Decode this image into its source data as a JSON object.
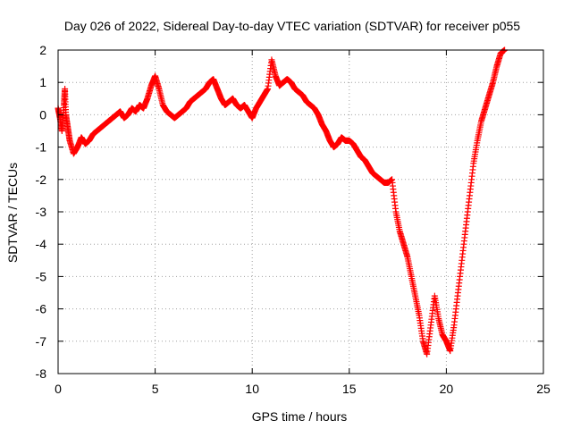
{
  "chart_data": {
    "type": "scatter",
    "title": "Day 026 of 2022, Sidereal Day-to-day VTEC variation (SDTVAR) for receiver p055",
    "xlabel": "GPS time / hours",
    "ylabel": "SDTVAR / TECUs",
    "xlim": [
      0,
      25
    ],
    "ylim": [
      -8,
      2
    ],
    "x_ticks": [
      0,
      5,
      10,
      15,
      20,
      25
    ],
    "y_ticks": [
      -8,
      -7,
      -6,
      -5,
      -4,
      -3,
      -2,
      -1,
      0,
      1,
      2
    ],
    "grid": true,
    "marker": "+",
    "series": [
      {
        "name": "SDTVAR",
        "color": "#ff0000",
        "x": [
          0.0,
          0.1,
          0.2,
          0.3,
          0.35,
          0.4,
          0.5,
          0.6,
          0.8,
          1.0,
          1.2,
          1.4,
          1.6,
          1.8,
          2.0,
          2.2,
          2.4,
          2.6,
          2.8,
          3.0,
          3.2,
          3.4,
          3.6,
          3.8,
          4.0,
          4.2,
          4.4,
          4.6,
          4.8,
          5.0,
          5.2,
          5.4,
          5.6,
          5.8,
          6.0,
          6.2,
          6.4,
          6.6,
          6.8,
          7.0,
          7.2,
          7.4,
          7.6,
          7.8,
          8.0,
          8.2,
          8.4,
          8.6,
          8.8,
          9.0,
          9.2,
          9.4,
          9.6,
          9.8,
          10.0,
          10.2,
          10.4,
          10.6,
          10.8,
          11.0,
          11.2,
          11.4,
          11.6,
          11.8,
          12.0,
          12.2,
          12.4,
          12.6,
          12.8,
          13.0,
          13.2,
          13.4,
          13.6,
          13.8,
          14.0,
          14.2,
          14.4,
          14.6,
          14.8,
          15.0,
          15.2,
          15.4,
          15.6,
          15.8,
          16.0,
          16.2,
          16.4,
          16.6,
          16.8,
          17.0,
          17.2,
          17.4,
          17.6,
          17.8,
          18.0,
          18.2,
          18.4,
          18.6,
          18.8,
          19.0,
          19.2,
          19.4,
          19.6,
          19.8,
          20.0,
          20.2,
          20.4,
          20.6,
          20.8,
          21.0,
          21.2,
          21.4,
          21.6,
          21.8,
          22.0,
          22.2,
          22.4,
          22.6,
          22.8,
          23.0
        ],
        "y": [
          0.2,
          -0.1,
          -0.5,
          0.3,
          0.8,
          0.0,
          -0.4,
          -0.8,
          -1.2,
          -1.0,
          -0.7,
          -0.9,
          -0.8,
          -0.6,
          -0.5,
          -0.4,
          -0.3,
          -0.2,
          -0.1,
          0.0,
          0.1,
          -0.1,
          0.0,
          0.2,
          0.1,
          0.3,
          0.2,
          0.5,
          0.9,
          1.2,
          0.8,
          0.3,
          0.1,
          0.0,
          -0.1,
          0.0,
          0.1,
          0.2,
          0.4,
          0.5,
          0.6,
          0.7,
          0.8,
          1.0,
          1.1,
          0.8,
          0.5,
          0.3,
          0.4,
          0.5,
          0.3,
          0.2,
          0.3,
          0.1,
          -0.1,
          0.2,
          0.4,
          0.6,
          0.8,
          1.7,
          1.2,
          0.9,
          1.0,
          1.1,
          1.0,
          0.8,
          0.7,
          0.6,
          0.4,
          0.3,
          0.2,
          0.0,
          -0.3,
          -0.5,
          -0.8,
          -1.0,
          -0.9,
          -0.7,
          -0.8,
          -0.8,
          -0.9,
          -1.1,
          -1.3,
          -1.4,
          -1.6,
          -1.8,
          -1.9,
          -2.0,
          -2.1,
          -2.1,
          -2.0,
          -3.0,
          -3.6,
          -4.0,
          -4.4,
          -5.0,
          -5.6,
          -6.2,
          -7.0,
          -7.4,
          -6.5,
          -5.6,
          -6.3,
          -6.8,
          -7.0,
          -7.3,
          -6.5,
          -5.5,
          -4.5,
          -3.5,
          -2.5,
          -1.5,
          -0.8,
          -0.2,
          0.2,
          0.6,
          1.0,
          1.5,
          1.9,
          2.0
        ]
      }
    ]
  }
}
